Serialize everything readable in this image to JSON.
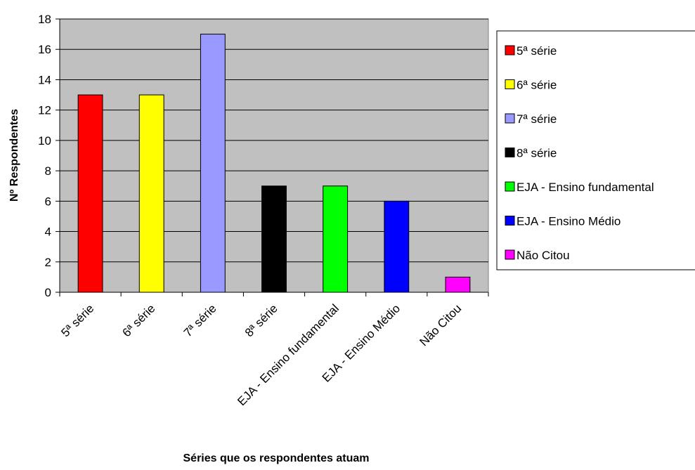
{
  "chart_data": {
    "type": "bar",
    "title": "",
    "xlabel": "Séries que os respondentes atuam",
    "ylabel": "Nº Respondentes",
    "ylim": [
      0,
      18
    ],
    "ytick_step": 2,
    "grid": true,
    "legend_position": "right",
    "plot_background": "#c0c0c0",
    "categories": [
      "5ª série",
      "6ª série",
      "7ª série",
      "8ª série",
      "EJA - Ensino fundamental",
      "EJA - Ensino Médio",
      "Não Citou"
    ],
    "values": [
      13,
      13,
      17,
      7,
      7,
      6,
      1
    ],
    "colors": [
      "#ff0000",
      "#ffff00",
      "#9999ff",
      "#000000",
      "#00ff00",
      "#0000ff",
      "#ff00ff"
    ],
    "legend": [
      "5ª série",
      "6ª série",
      "7ª série",
      "8ª série",
      "EJA - Ensino fundamental",
      "EJA - Ensino Médio",
      "Não Citou"
    ]
  }
}
